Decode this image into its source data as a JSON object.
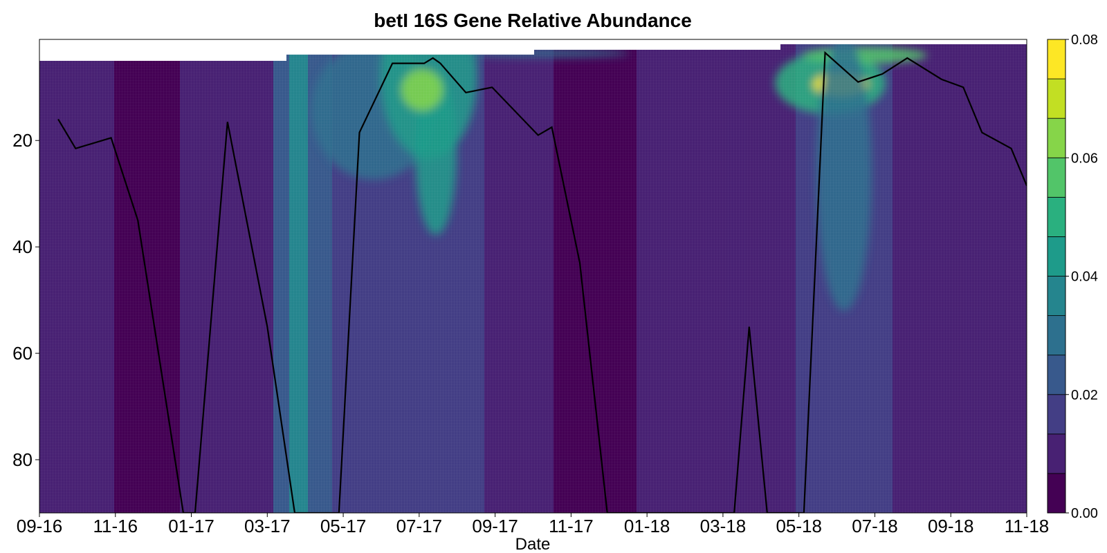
{
  "chart_data": {
    "type": "heatmap",
    "title": "betI 16S Gene Relative Abundance",
    "xlabel": "Date",
    "ylabel": "",
    "x_ticks": [
      "09-16",
      "11-16",
      "01-17",
      "03-17",
      "05-17",
      "07-17",
      "09-17",
      "11-17",
      "01-18",
      "03-18",
      "05-18",
      "07-18",
      "09-18",
      "11-18"
    ],
    "y_ticks": [
      20,
      40,
      60,
      80
    ],
    "y_range": [
      1,
      90
    ],
    "y_inverted": true,
    "colorbar": {
      "min": 0.0,
      "max": 0.08,
      "ticks": [
        "0.00",
        "0.02",
        "0.04",
        "0.06",
        "0.08"
      ],
      "colormap": [
        "#440154",
        "#482173",
        "#433e85",
        "#38598c",
        "#2d708e",
        "#25858e",
        "#1e9b8a",
        "#2ab07f",
        "#52c569",
        "#86d549",
        "#c2df23",
        "#fde725"
      ]
    },
    "line_series": {
      "description": "",
      "points": [
        [
          "09-16",
          16
        ],
        [
          "09-30",
          21.5
        ],
        [
          "10-28",
          19.5
        ],
        [
          "11-19",
          35
        ],
        [
          "12-25",
          90
        ],
        [
          "01-04",
          90
        ],
        [
          "01-30",
          16.5
        ],
        [
          "03-01",
          55
        ],
        [
          "03-23",
          90
        ],
        [
          "04-28",
          90
        ],
        [
          "05-14",
          18.5
        ],
        [
          "06-10",
          5.5
        ],
        [
          "07-05",
          5.5
        ],
        [
          "07-12",
          4.5
        ],
        [
          "07-18",
          5.5
        ],
        [
          "08-08",
          11
        ],
        [
          "08-29",
          10
        ],
        [
          "10-05",
          19
        ],
        [
          "10-16",
          17.5
        ],
        [
          "11-08",
          43
        ],
        [
          "11-30",
          90
        ],
        [
          "03-10",
          90
        ],
        [
          "03-22",
          55
        ],
        [
          "04-06",
          90
        ],
        [
          "05-05",
          90
        ],
        [
          "05-22",
          3.5
        ],
        [
          "06-18",
          9
        ],
        [
          "07-07",
          7.5
        ],
        [
          "07-27",
          4.5
        ],
        [
          "08-24",
          8.5
        ],
        [
          "09-11",
          10
        ],
        [
          "09-26",
          18.5
        ],
        [
          "10-19",
          21.5
        ],
        [
          "11-18",
          28.5
        ]
      ]
    }
  }
}
